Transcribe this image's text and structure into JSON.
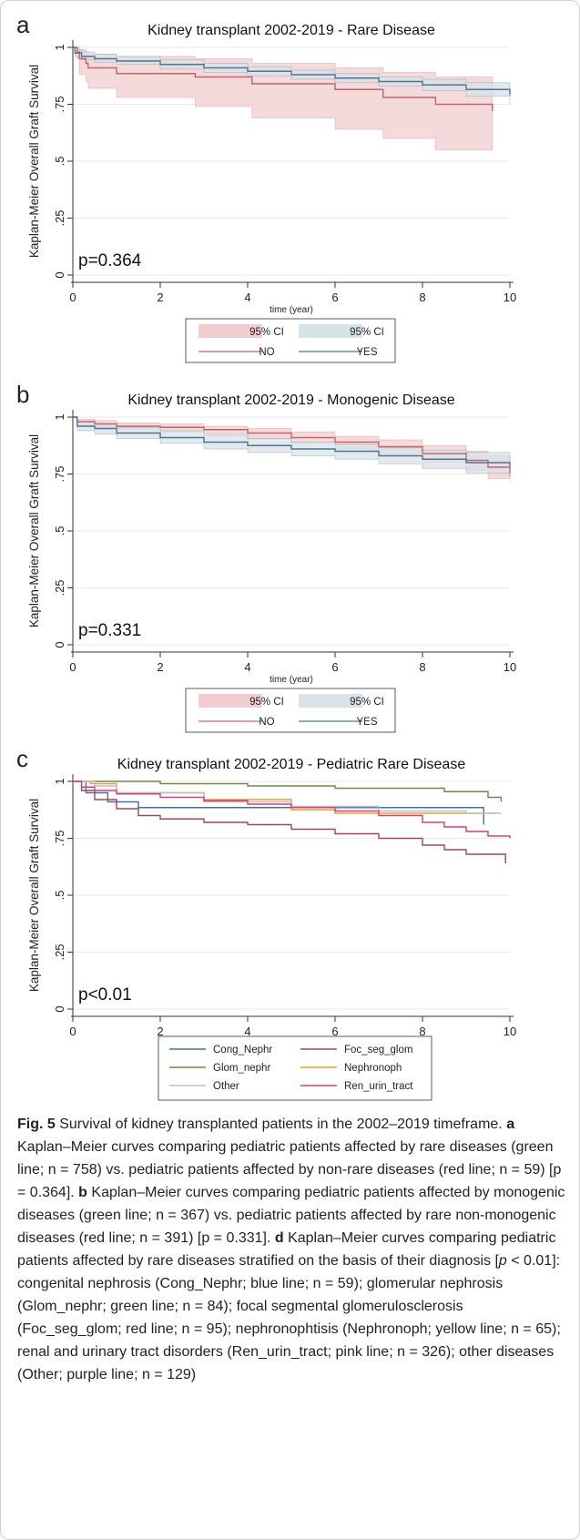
{
  "chart_data": [
    {
      "type": "line",
      "panel": "a",
      "title": "Kidney transplant 2002-2019 - Rare Disease",
      "xlabel": "time (year)",
      "ylabel": "Kaplan-Meier Overall Graft Survival",
      "xlim": [
        0,
        10
      ],
      "ylim": [
        0,
        1
      ],
      "x_ticks": [
        "0",
        "2",
        "4",
        "6",
        "8",
        "10"
      ],
      "y_ticks": [
        "0",
        ".25",
        ".5",
        ".75",
        "1"
      ],
      "grid": "horizontal",
      "annotation": "p=0.364",
      "legend_position": "bottom",
      "legend": [
        "95% CI",
        "95% CI",
        "NO",
        "YES"
      ],
      "series": [
        {
          "name": "NO",
          "color": "#c0646e",
          "band_color": "#f2cdd0",
          "x": [
            0,
            0.1,
            0.15,
            0.3,
            0.35,
            1.0,
            2.8,
            4.1,
            6.0,
            7.1,
            8.3,
            9.6
          ],
          "y": [
            1.0,
            0.98,
            0.95,
            0.93,
            0.91,
            0.885,
            0.87,
            0.84,
            0.815,
            0.78,
            0.75,
            0.72
          ],
          "lower": [
            1.0,
            0.95,
            0.88,
            0.85,
            0.82,
            0.78,
            0.74,
            0.69,
            0.64,
            0.6,
            0.55,
            0.55
          ],
          "upper": [
            1.0,
            1.0,
            0.99,
            0.98,
            0.97,
            0.96,
            0.95,
            0.93,
            0.91,
            0.89,
            0.87,
            0.86
          ]
        },
        {
          "name": "YES",
          "color": "#4f7391",
          "band_color": "#d8e3e8",
          "x": [
            0,
            0.05,
            0.2,
            0.5,
            1,
            2,
            3,
            4,
            5,
            6,
            7,
            8,
            9,
            10
          ],
          "y": [
            1.0,
            0.975,
            0.96,
            0.95,
            0.94,
            0.925,
            0.91,
            0.895,
            0.88,
            0.865,
            0.85,
            0.835,
            0.815,
            0.79
          ],
          "lower": [
            1.0,
            0.96,
            0.945,
            0.935,
            0.925,
            0.905,
            0.89,
            0.875,
            0.86,
            0.845,
            0.83,
            0.81,
            0.785,
            0.75
          ],
          "upper": [
            1.0,
            0.99,
            0.98,
            0.97,
            0.96,
            0.945,
            0.93,
            0.915,
            0.9,
            0.885,
            0.87,
            0.86,
            0.845,
            0.825
          ]
        }
      ]
    },
    {
      "type": "line",
      "panel": "b",
      "title": "Kidney transplant 2002-2019 - Monogenic Disease",
      "xlabel": "time (year)",
      "ylabel": "Kaplan-Meier Overall Graft Survival",
      "xlim": [
        0,
        10
      ],
      "ylim": [
        0,
        1
      ],
      "x_ticks": [
        "0",
        "2",
        "4",
        "6",
        "8",
        "10"
      ],
      "y_ticks": [
        "0",
        ".25",
        ".5",
        ".75",
        "1"
      ],
      "grid": "horizontal",
      "annotation": "p=0.331",
      "legend_position": "bottom",
      "legend": [
        "95% CI",
        "95% CI",
        "NO",
        "YES"
      ],
      "series": [
        {
          "name": "NO",
          "color": "#c0646e",
          "band_color": "#f2cdd0",
          "x": [
            0,
            0.1,
            0.5,
            1,
            2,
            3,
            4,
            5,
            6,
            7,
            8,
            9,
            9.5,
            10
          ],
          "y": [
            1.0,
            0.98,
            0.97,
            0.96,
            0.955,
            0.945,
            0.93,
            0.91,
            0.89,
            0.87,
            0.84,
            0.81,
            0.78,
            0.75
          ],
          "lower": [
            1.0,
            0.965,
            0.955,
            0.945,
            0.935,
            0.925,
            0.905,
            0.885,
            0.86,
            0.835,
            0.8,
            0.765,
            0.73,
            0.71
          ],
          "upper": [
            1.0,
            0.99,
            0.985,
            0.975,
            0.97,
            0.96,
            0.95,
            0.935,
            0.915,
            0.9,
            0.875,
            0.85,
            0.83,
            0.8
          ]
        },
        {
          "name": "YES",
          "color": "#4f7391",
          "band_color": "#d8e3e8",
          "x": [
            0,
            0.1,
            0.5,
            1,
            2,
            3,
            4,
            5,
            6,
            7,
            8,
            9,
            10
          ],
          "y": [
            1.0,
            0.96,
            0.95,
            0.93,
            0.91,
            0.89,
            0.875,
            0.86,
            0.85,
            0.83,
            0.815,
            0.8,
            0.785
          ],
          "lower": [
            1.0,
            0.94,
            0.925,
            0.905,
            0.885,
            0.86,
            0.845,
            0.83,
            0.815,
            0.795,
            0.775,
            0.755,
            0.735
          ],
          "upper": [
            1.0,
            0.98,
            0.97,
            0.955,
            0.94,
            0.92,
            0.905,
            0.89,
            0.88,
            0.865,
            0.855,
            0.845,
            0.835
          ]
        }
      ]
    },
    {
      "type": "line",
      "panel": "c",
      "title": "Kidney transplant 2002-2019 - Pediatric Rare Disease",
      "xlabel": "time (year)",
      "ylabel": "Kaplan-Meier Overall Graft Survival",
      "xlim": [
        0,
        10
      ],
      "ylim": [
        0,
        1
      ],
      "x_ticks": [
        "0",
        "2",
        "4",
        "6",
        "8",
        "10"
      ],
      "y_ticks": [
        "0",
        ".25",
        ".5",
        ".75",
        "1"
      ],
      "grid": "horizontal",
      "annotation": "p<0.01",
      "legend_position": "bottom",
      "legend": [
        "Cong_Nephr",
        "Foc_seg_glom",
        "Glom_nephr",
        "Nephronoph",
        "Other",
        "Ren_urin_tract"
      ],
      "series": [
        {
          "name": "Cong_Nephr",
          "color": "#4a6f8f",
          "x": [
            0,
            0.3,
            0.8,
            1.5,
            9.4,
            9.4
          ],
          "y": [
            1.0,
            0.95,
            0.91,
            0.885,
            0.885,
            0.81
          ]
        },
        {
          "name": "Foc_seg_glom",
          "color": "#9c4a58",
          "x": [
            0,
            0.2,
            0.5,
            1.0,
            1.5,
            2,
            3,
            4,
            5,
            6,
            7,
            8,
            8.5,
            9,
            9.9
          ],
          "y": [
            1.0,
            0.96,
            0.92,
            0.88,
            0.85,
            0.835,
            0.82,
            0.81,
            0.79,
            0.77,
            0.75,
            0.72,
            0.7,
            0.68,
            0.64
          ]
        },
        {
          "name": "Glom_nephr",
          "color": "#6e8a4c",
          "x": [
            0,
            0.1,
            2.0,
            4.0,
            6.0,
            8.5,
            9.5,
            9.8
          ],
          "y": [
            1.0,
            1.0,
            0.99,
            0.98,
            0.97,
            0.955,
            0.93,
            0.91
          ]
        },
        {
          "name": "Nephronoph",
          "color": "#e3a233",
          "x": [
            0,
            0.4,
            1.0,
            3.0,
            5.0,
            6.0,
            9.0,
            9.7
          ],
          "y": [
            1.0,
            0.99,
            0.95,
            0.92,
            0.875,
            0.86,
            0.86,
            0.86
          ]
        },
        {
          "name": "Other",
          "color": "#b7c2c6",
          "x": [
            0,
            0.5,
            1.0,
            3.0,
            5.0,
            7.0,
            9.0,
            9.8
          ],
          "y": [
            1.0,
            0.98,
            0.95,
            0.91,
            0.89,
            0.87,
            0.86,
            0.86
          ]
        },
        {
          "name": "Ren_urin_tract",
          "color": "#d33f78",
          "x": [
            0,
            0.2,
            0.5,
            1,
            2,
            3,
            4,
            5,
            6,
            7,
            8,
            8.5,
            9,
            9.5,
            10
          ],
          "y": [
            1.0,
            0.975,
            0.96,
            0.945,
            0.93,
            0.915,
            0.9,
            0.885,
            0.87,
            0.85,
            0.82,
            0.8,
            0.78,
            0.76,
            0.75
          ]
        }
      ]
    }
  ],
  "caption": {
    "label": "Fig. 5",
    "intro": "Survival of kidney transplanted patients in the 2002–2019 timeframe. ",
    "a_label": "a",
    "a_text": " Kaplan–Meier curves comparing pediatric patients affected by rare diseases (green line; n = 758) vs. pediatric patients affected by non-rare diseases (red line; n = 59) [p = 0.364]. ",
    "b_label": "b",
    "b_text": " Kaplan–Meier curves comparing pediatric patients affected by monogenic diseases (green line; n = 367) vs. pediatric patients affected by rare non-monogenic diseases (red line; n = 391) [p = 0.331]. ",
    "d_label": "d",
    "d_text_1": " Kaplan–Meier curves comparing pediatric patients affected by rare diseases stratified on the basis of their diagnosis [",
    "d_p": "p",
    "d_text_2": " < 0.01]: congenital nephrosis (Cong_Nephr; blue line; n = 59); glomerular nephrosis (Glom_nephr; green line; n = 84); focal segmental glomerulosclerosis (Foc_seg_glom; red line; n = 95); nephronophtisis (Nephronoph; yellow line; n = 65); renal and urinary tract disorders (Ren_urin_tract; pink line; n = 326); other diseases (Other; purple line; n = 129)"
  }
}
